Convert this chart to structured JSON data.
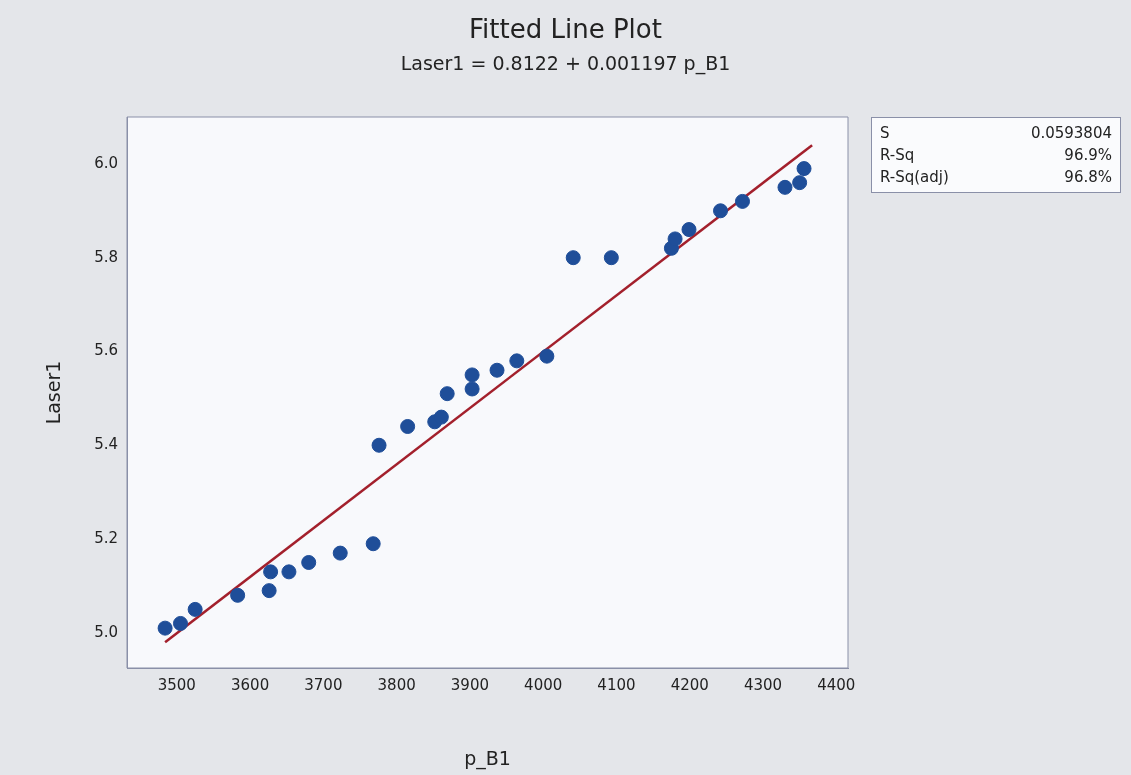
{
  "chart_data": {
    "type": "scatter",
    "title": "Fitted Line Plot",
    "subtitle": "Laser1 = 0.8122 + 0.001197 p_B1",
    "xlabel": "p_B1",
    "ylabel": "Laser1",
    "xlim": [
      3432,
      4416
    ],
    "xticks": [
      3500,
      3600,
      3700,
      3800,
      3900,
      4000,
      4100,
      4200,
      4300,
      4400
    ],
    "ylim": [
      4.925,
      6.1
    ],
    "yticks": [
      {
        "value": 5,
        "label": "5.0"
      },
      {
        "value": 5.2,
        "label": "5.2"
      },
      {
        "value": 5.4,
        "label": "5.4"
      },
      {
        "value": 5.6,
        "label": "5.6"
      },
      {
        "value": 5.8,
        "label": "5.8"
      },
      {
        "value": 6,
        "label": "6.0"
      }
    ],
    "grid": false,
    "legend": false,
    "annotations": [
      "S",
      "0.0593804",
      "R-Sq",
      "96.9%",
      "R-Sq(adj)",
      "96.8%"
    ],
    "series": [
      {
        "type": "scatter",
        "marker": "circle",
        "color": "#1f4e99",
        "x": [
          3484,
          3505,
          3525,
          3583,
          3626,
          3628,
          3653,
          3680,
          3723,
          3768,
          3776,
          3815,
          3852,
          3861,
          3869,
          3903,
          3903,
          3937,
          3964,
          4005,
          4041,
          4093,
          4175,
          4180,
          4199,
          4242,
          4272,
          4330,
          4350,
          4356
        ],
        "values": [
          5.01,
          5.02,
          5.05,
          5.08,
          5.09,
          5.13,
          5.13,
          5.15,
          5.17,
          5.19,
          5.4,
          5.44,
          5.45,
          5.46,
          5.51,
          5.55,
          5.52,
          5.56,
          5.58,
          5.59,
          5.8,
          5.8,
          5.82,
          5.84,
          5.86,
          5.9,
          5.92,
          5.95,
          5.96,
          5.99
        ]
      },
      {
        "type": "line",
        "marker": "none",
        "color": "#a3202c",
        "line_style": "solid",
        "x": [
          3484,
          4367
        ],
        "values": [
          4.98,
          6.04
        ]
      }
    ]
  }
}
